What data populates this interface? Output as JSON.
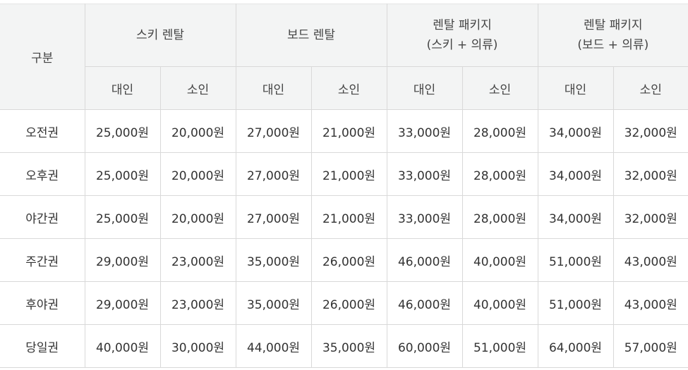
{
  "table": {
    "corner_label": "구분",
    "groups": [
      {
        "lines": [
          "스키 렌탈"
        ]
      },
      {
        "lines": [
          "보드 렌탈"
        ]
      },
      {
        "lines": [
          "렌탈 패키지",
          "(스키 + 의류)"
        ]
      },
      {
        "lines": [
          "렌탈 패키지",
          "(보드 + 의류)"
        ]
      }
    ],
    "subheaders": [
      "대인",
      "소인",
      "대인",
      "소인",
      "대인",
      "소인",
      "대인",
      "소인"
    ],
    "rows": [
      {
        "label": "오전권",
        "cells": [
          "25,000원",
          "20,000원",
          "27,000원",
          "21,000원",
          "33,000원",
          "28,000원",
          "34,000원",
          "32,000원"
        ]
      },
      {
        "label": "오후권",
        "cells": [
          "25,000원",
          "20,000원",
          "27,000원",
          "21,000원",
          "33,000원",
          "28,000원",
          "34,000원",
          "32,000원"
        ]
      },
      {
        "label": "야간권",
        "cells": [
          "25,000원",
          "20,000원",
          "27,000원",
          "21,000원",
          "33,000원",
          "28,000원",
          "34,000원",
          "32,000원"
        ]
      },
      {
        "label": "주간권",
        "cells": [
          "29,000원",
          "23,000원",
          "35,000원",
          "26,000원",
          "46,000원",
          "40,000원",
          "51,000원",
          "43,000원"
        ]
      },
      {
        "label": "후야권",
        "cells": [
          "29,000원",
          "23,000원",
          "35,000원",
          "26,000원",
          "46,000원",
          "40,000원",
          "51,000원",
          "43,000원"
        ]
      },
      {
        "label": "당일권",
        "cells": [
          "40,000원",
          "30,000원",
          "44,000원",
          "35,000원",
          "60,000원",
          "51,000원",
          "64,000원",
          "57,000원"
        ]
      }
    ]
  }
}
